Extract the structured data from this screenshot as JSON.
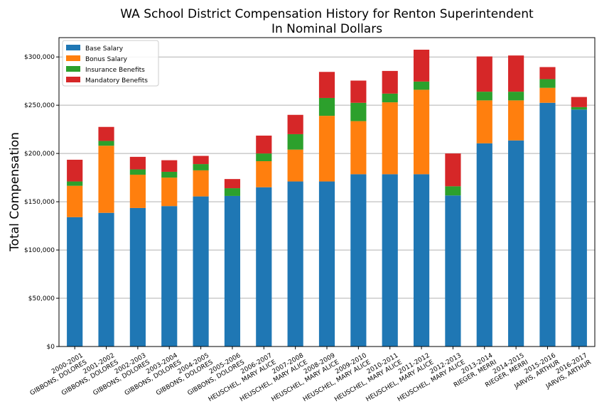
{
  "chart_data": {
    "type": "bar",
    "stacked": true,
    "title_line1": "WA School District Compensation History for Renton Superintendent",
    "title_line2": "In Nominal Dollars",
    "xlabel": "",
    "ylabel": "Total Compensation",
    "ylim": [
      0,
      320000
    ],
    "yticks": [
      0,
      50000,
      100000,
      150000,
      200000,
      250000,
      300000
    ],
    "ytick_labels": [
      "$0",
      "$50,000",
      "$100,000",
      "$150,000",
      "$200,000",
      "$250,000",
      "$300,000"
    ],
    "grid": "horizontal",
    "legend_position": "top-left",
    "categories": [
      {
        "year": "2000-2001",
        "name": "GIBBONS, DOLORES"
      },
      {
        "year": "2001-2002",
        "name": "GIBBONS, DOLORES"
      },
      {
        "year": "2002-2003",
        "name": "GIBBONS, DOLORES"
      },
      {
        "year": "2003-2004",
        "name": "GIBBONS, DOLORES"
      },
      {
        "year": "2004-2005",
        "name": "GIBBONS, DOLORES"
      },
      {
        "year": "2005-2006",
        "name": "GIBBONS, DOLORES"
      },
      {
        "year": "2006-2007",
        "name": "HEUSCHEL, MARY ALICE"
      },
      {
        "year": "2007-2008",
        "name": "HEUSCHEL, MARY ALICE"
      },
      {
        "year": "2008-2009",
        "name": "HEUSCHEL, MARY ALICE"
      },
      {
        "year": "2009-2010",
        "name": "HEUSCHEL, MARY ALICE"
      },
      {
        "year": "2010-2011",
        "name": "HEUSCHEL, MARY ALICE"
      },
      {
        "year": "2011-2012",
        "name": "HEUSCHEL, MARY ALICE"
      },
      {
        "year": "2012-2013",
        "name": "HEUSCHEL, MARY ALICE"
      },
      {
        "year": "2013-2014",
        "name": "RIEGER, MERRI"
      },
      {
        "year": "2014-2015",
        "name": "RIEGER, MERRI"
      },
      {
        "year": "2015-2016",
        "name": "JARVIS, ARTHUR"
      },
      {
        "year": "2016-2017",
        "name": "JARVIS, ARTHUR"
      }
    ],
    "series": [
      {
        "name": "Base Salary",
        "color": "#1f77b4",
        "values": [
          134000,
          138500,
          143500,
          145500,
          155500,
          156000,
          165000,
          171000,
          171000,
          178500,
          178500,
          178500,
          156500,
          210500,
          213500,
          252500,
          245500
        ]
      },
      {
        "name": "Bonus Salary",
        "color": "#ff7f0e",
        "values": [
          32500,
          69500,
          34500,
          29500,
          27000,
          0,
          27000,
          33000,
          68000,
          55000,
          74500,
          87500,
          0,
          44500,
          41500,
          15500,
          0
        ]
      },
      {
        "name": "Insurance Benefits",
        "color": "#2ca02c",
        "values": [
          4500,
          5000,
          5500,
          6000,
          6500,
          8000,
          8000,
          16000,
          18500,
          19000,
          9000,
          8500,
          9500,
          9000,
          9000,
          9000,
          2500
        ]
      },
      {
        "name": "Mandatory Benefits",
        "color": "#d62728",
        "values": [
          22500,
          14500,
          13000,
          12000,
          8500,
          9500,
          18500,
          20000,
          27000,
          23000,
          23500,
          33000,
          34000,
          36500,
          37500,
          12500,
          10500
        ]
      }
    ]
  }
}
